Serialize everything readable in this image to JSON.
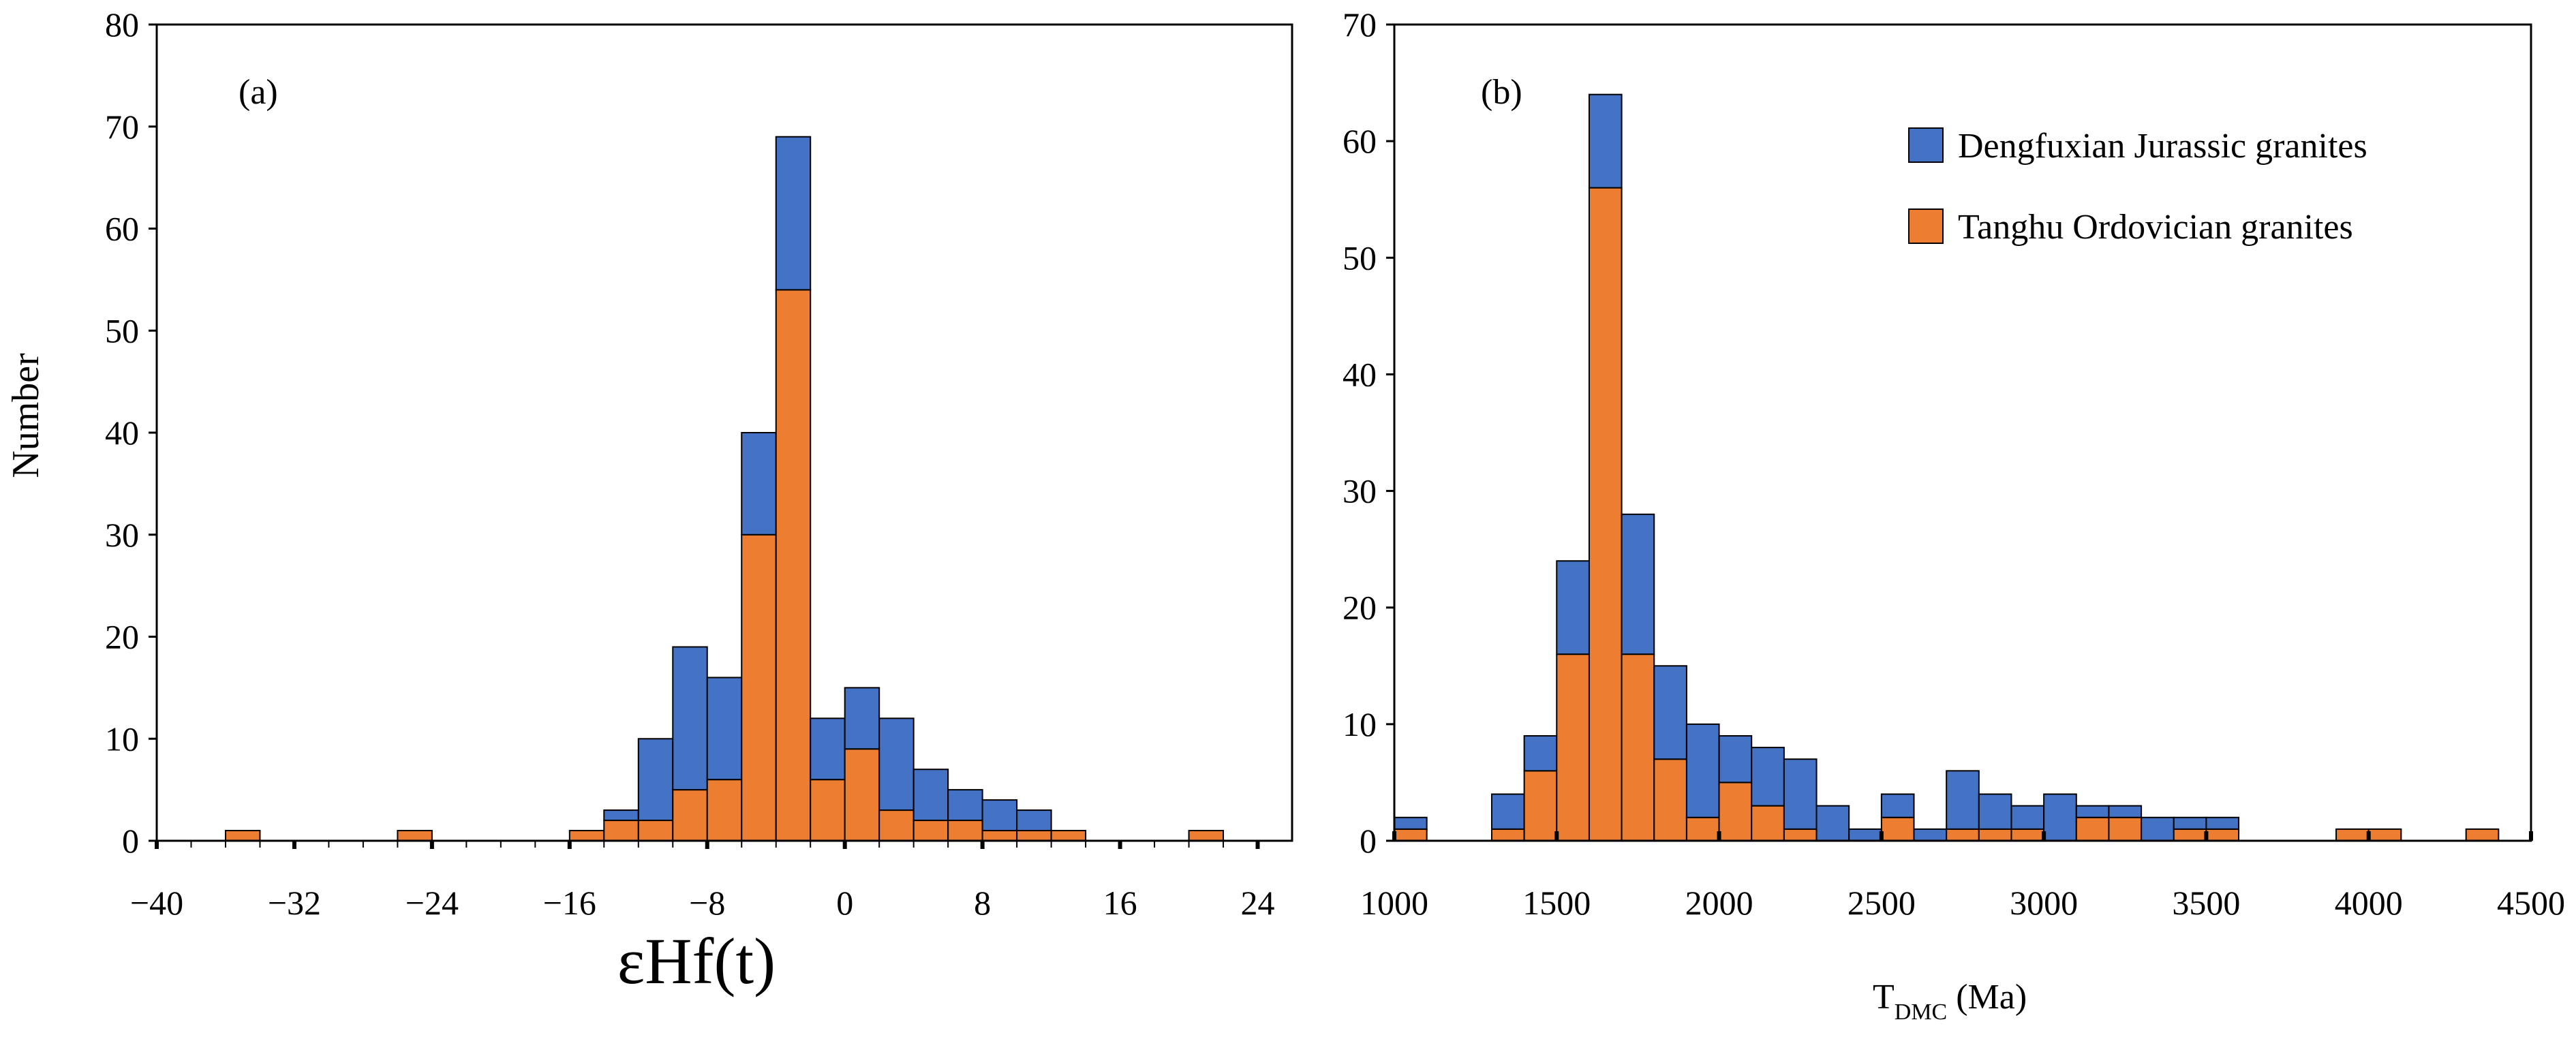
{
  "colors": {
    "series_dengfuxian": "#4472C4",
    "series_tanghu": "#ED7D31",
    "stroke": "#000000"
  },
  "chart_data": [
    {
      "type": "bar",
      "stacked": true,
      "panel_label": "(a)",
      "xlabel_main": "εHf(t)",
      "xlabel_sub": "",
      "xlabel_suffix": "",
      "ylabel": "Number",
      "xlim": [
        -40,
        26
      ],
      "ylim": [
        0,
        80
      ],
      "xticks": [
        -40,
        -32,
        -24,
        -16,
        -8,
        0,
        8,
        16,
        24
      ],
      "xtick_labels": [
        "−40",
        "−32",
        "−24",
        "−16",
        "−8",
        "0",
        "8",
        "16",
        "24"
      ],
      "yticks": [
        0,
        10,
        20,
        30,
        40,
        50,
        60,
        70,
        80
      ],
      "bin_width": 2,
      "bin_starts": [
        -36,
        -26,
        -16,
        -14,
        -12,
        -10,
        -8,
        -6,
        -4,
        -2,
        0,
        2,
        4,
        6,
        8,
        10,
        12,
        20
      ],
      "series": [
        {
          "name": "Tanghu Ordovician granites",
          "values": [
            1,
            1,
            1,
            2,
            2,
            5,
            6,
            30,
            54,
            6,
            9,
            3,
            2,
            2,
            1,
            1,
            1,
            1
          ]
        },
        {
          "name": "Dengfuxian Jurassic granites",
          "values": [
            0,
            0,
            0,
            1,
            8,
            14,
            10,
            10,
            15,
            6,
            6,
            9,
            5,
            3,
            3,
            2,
            0,
            0
          ]
        }
      ]
    },
    {
      "type": "bar",
      "stacked": true,
      "panel_label": "(b)",
      "xlabel_main": "T",
      "xlabel_sub": "DMC",
      "xlabel_suffix": " (Ma)",
      "ylabel": "",
      "xlim": [
        1000,
        4500
      ],
      "ylim": [
        0,
        70
      ],
      "xticks": [
        1000,
        1500,
        2000,
        2500,
        3000,
        3500,
        4000,
        4500
      ],
      "xtick_labels": [
        "1000",
        "1500",
        "2000",
        "2500",
        "3000",
        "3500",
        "4000",
        "4500"
      ],
      "yticks": [
        0,
        10,
        20,
        30,
        40,
        50,
        60,
        70
      ],
      "bin_width": 100,
      "bin_starts": [
        1000,
        1300,
        1400,
        1500,
        1600,
        1700,
        1800,
        1900,
        2000,
        2100,
        2200,
        2300,
        2400,
        2500,
        2600,
        2700,
        2800,
        2900,
        3000,
        3100,
        3200,
        3300,
        3400,
        3500,
        3900,
        4000,
        4300
      ],
      "series": [
        {
          "name": "Tanghu Ordovician granites",
          "values": [
            1,
            1,
            6,
            16,
            56,
            16,
            7,
            2,
            5,
            3,
            1,
            0,
            0,
            2,
            0,
            1,
            1,
            1,
            0,
            2,
            2,
            0,
            1,
            1,
            1,
            1,
            1
          ]
        },
        {
          "name": "Dengfuxian Jurassic granites",
          "values": [
            1,
            3,
            3,
            8,
            8,
            12,
            8,
            8,
            4,
            5,
            6,
            3,
            1,
            2,
            1,
            5,
            3,
            2,
            4,
            1,
            1,
            2,
            1,
            1,
            0,
            0,
            0
          ]
        }
      ],
      "legend": {
        "position": "top-right",
        "entries": [
          "Dengfuxian Jurassic granites",
          "Tanghu Ordovician granites"
        ]
      }
    }
  ]
}
